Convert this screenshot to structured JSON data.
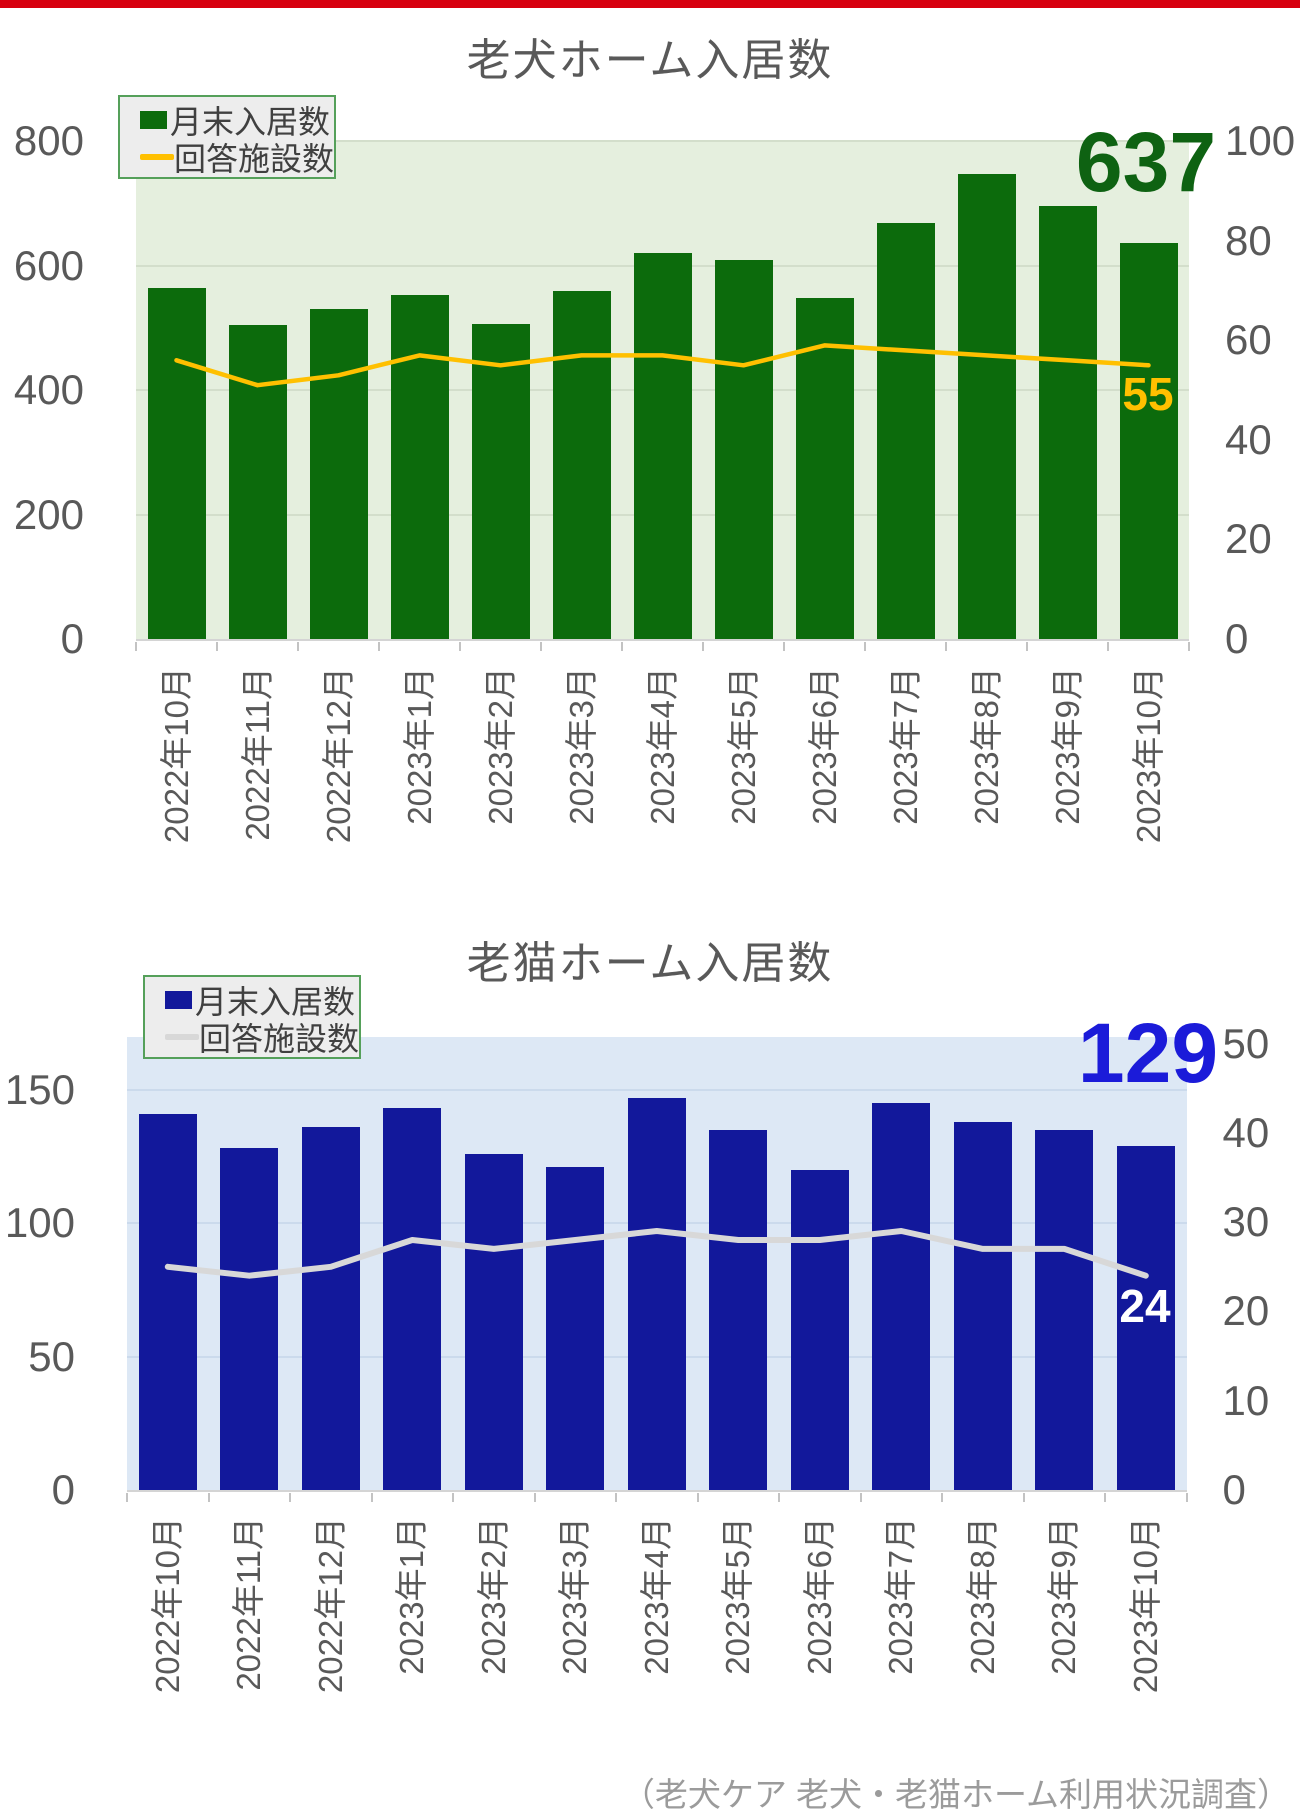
{
  "page": {
    "top_strip_color": "#d7000f"
  },
  "chart_data": [
    {
      "id": "dog",
      "type": "bar+line",
      "title": "老犬ホーム入居数",
      "categories": [
        "2022年10月",
        "2022年11月",
        "2022年12月",
        "2023年1月",
        "2023年2月",
        "2023年3月",
        "2023年4月",
        "2023年5月",
        "2023年6月",
        "2023年7月",
        "2023年8月",
        "2023年9月",
        "2023年10月"
      ],
      "series": [
        {
          "name": "月末入居数",
          "type": "bar",
          "axis": "left",
          "values": [
            565,
            505,
            530,
            553,
            506,
            560,
            620,
            609,
            549,
            669,
            748,
            696,
            637
          ]
        },
        {
          "name": "回答施設数",
          "type": "line",
          "axis": "right",
          "values": [
            56,
            51,
            53,
            57,
            55,
            57,
            57,
            55,
            59,
            58,
            57,
            56,
            55
          ]
        }
      ],
      "ylim_left": [
        0,
        800
      ],
      "ylim_right": [
        0,
        100
      ],
      "yticks_left": [
        0,
        200,
        400,
        600,
        800
      ],
      "yticks_right": [
        0,
        20,
        40,
        60,
        80,
        100
      ],
      "legend_position": "top-left",
      "grid": true,
      "annotations": {
        "latest_bar": "637",
        "latest_line": "55"
      },
      "colors": {
        "bar": "#0c6b0c",
        "line": "#ffc000",
        "plot_bg": "#e5efde",
        "grid": "#d3decb",
        "bar_value_label": "#0e6212",
        "line_value_label": "#ffc000",
        "axis_text": "#595959"
      }
    },
    {
      "id": "cat",
      "type": "bar+line",
      "title": "老猫ホーム入居数",
      "categories": [
        "2022年10月",
        "2022年11月",
        "2022年12月",
        "2023年1月",
        "2023年2月",
        "2023年3月",
        "2023年4月",
        "2023年5月",
        "2023年6月",
        "2023年7月",
        "2023年8月",
        "2023年9月",
        "2023年10月"
      ],
      "series": [
        {
          "name": "月末入居数",
          "type": "bar",
          "axis": "left",
          "values": [
            141,
            128,
            136,
            143,
            126,
            121,
            147,
            135,
            120,
            145,
            138,
            135,
            129
          ]
        },
        {
          "name": "回答施設数",
          "type": "line",
          "axis": "right",
          "values": [
            25,
            24,
            25,
            28,
            27,
            28,
            29,
            28,
            28,
            29,
            27,
            27,
            24
          ]
        }
      ],
      "ylim_left": [
        0,
        150
      ],
      "ylim_right": [
        0,
        50
      ],
      "yticks_left": [
        0,
        50,
        100,
        150
      ],
      "yticks_right": [
        0,
        10,
        20,
        30,
        40,
        50
      ],
      "legend_position": "top-left",
      "grid": true,
      "annotations": {
        "latest_bar": "129",
        "latest_line": "24"
      },
      "colors": {
        "bar": "#12189b",
        "line": "#d8d8d8",
        "plot_bg": "#dde8f5",
        "grid": "#cbdaec",
        "bar_value_label": "#1b1bd9",
        "line_value_label": "#ffffff",
        "axis_text": "#595959"
      }
    }
  ],
  "footer": {
    "source": "（老犬ケア 老犬・老猫ホーム利用状況調査）"
  }
}
